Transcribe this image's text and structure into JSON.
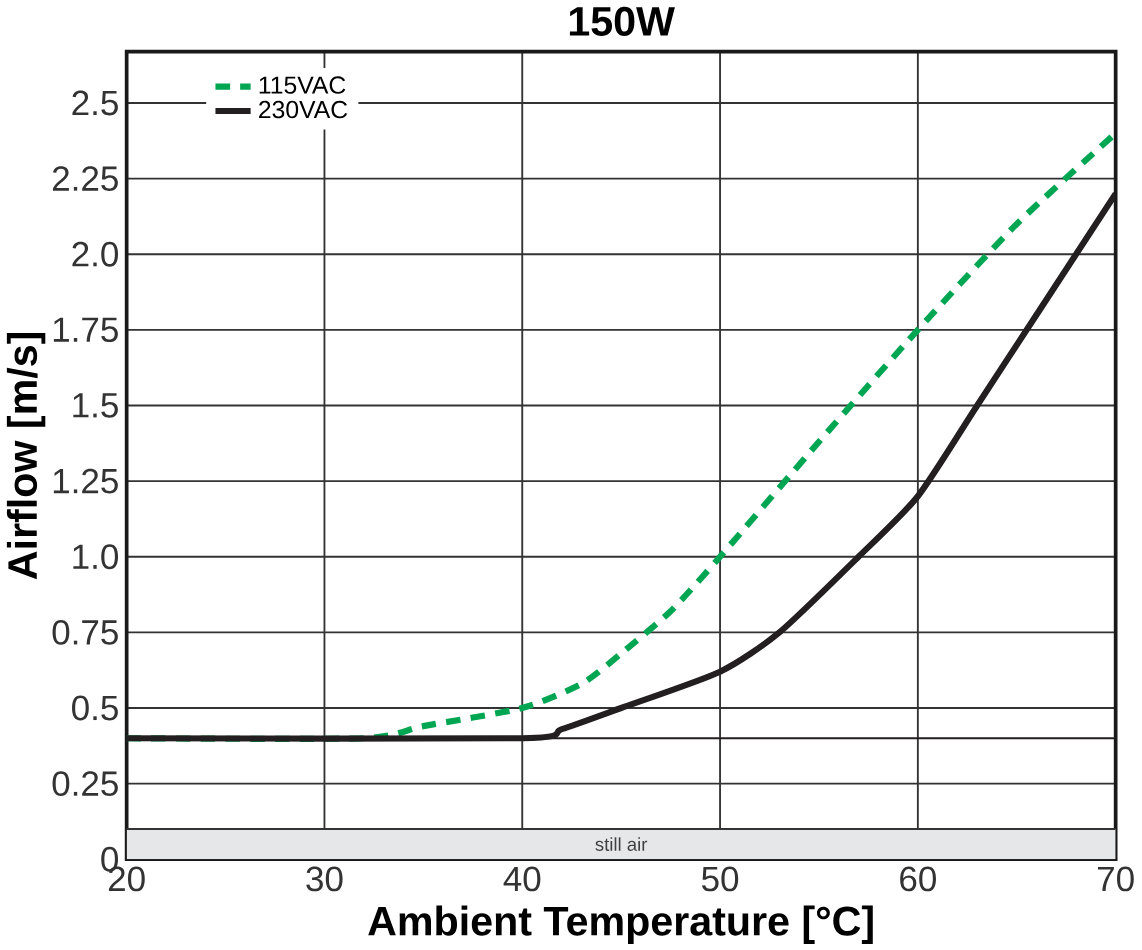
{
  "chart_data": {
    "type": "line",
    "title": "150W",
    "xlabel": "Ambient Temperature [°C]",
    "ylabel": "Airflow [m/s]",
    "xlim": [
      20,
      70
    ],
    "xticks": [
      20,
      30,
      40,
      50,
      60,
      70
    ],
    "ylim": [
      0,
      2.67
    ],
    "yticks": [
      {
        "value": 0,
        "label": "0"
      },
      {
        "value": 0.25,
        "label": "0.25"
      },
      {
        "value": 0.5,
        "label": "0.5"
      },
      {
        "value": 0.75,
        "label": "0.75"
      },
      {
        "value": 1,
        "label": "1.0"
      },
      {
        "value": 1.25,
        "label": "1.25"
      },
      {
        "value": 1.5,
        "label": "1.5"
      },
      {
        "value": 1.75,
        "label": "1.75"
      },
      {
        "value": 2,
        "label": "2.0"
      },
      {
        "value": 2.25,
        "label": "2.25"
      },
      {
        "value": 2.5,
        "label": "2.5"
      }
    ],
    "grid": true,
    "legend": "top left",
    "series": [
      {
        "name": "115VAC",
        "color": "#00a651",
        "line_style": "dashed",
        "x": [
          20,
          32,
          35,
          40,
          43,
          45,
          47.5,
          50,
          55,
          60,
          65,
          70
        ],
        "values": [
          0.4,
          0.4,
          0.44,
          0.5,
          0.58,
          0.68,
          0.82,
          1.0,
          1.38,
          1.75,
          2.1,
          2.4
        ]
      },
      {
        "name": "230VAC",
        "color": "#231f20",
        "line_style": "solid",
        "x": [
          20,
          40,
          42,
          45,
          50,
          53,
          57,
          60,
          63,
          66,
          70
        ],
        "values": [
          0.4,
          0.4,
          0.43,
          0.5,
          0.62,
          0.75,
          1.0,
          1.2,
          1.5,
          1.8,
          2.2
        ]
      }
    ],
    "ref_lines": [
      {
        "axis": "y",
        "value": 0.4,
        "color": "#231f20"
      }
    ],
    "bands": [
      {
        "axis": "y",
        "from": 0,
        "to": 0.1,
        "label": "still air",
        "color": "#e6e7e8"
      }
    ]
  }
}
